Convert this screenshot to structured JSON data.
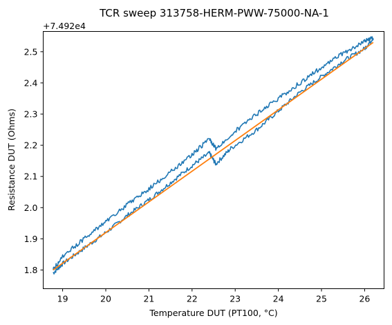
{
  "chart_data": {
    "type": "line",
    "title": "TCR sweep 313758-HERM-PWW-75000-NA-1",
    "xlabel": "Temperature DUT (PT100, °C)",
    "ylabel": "Resistance DUT (Ohms)",
    "y_offset_label": "+7.492e4",
    "xlim": [
      18.55,
      26.45
    ],
    "ylim": [
      1.74,
      2.565
    ],
    "x_ticks": [
      19,
      20,
      21,
      22,
      23,
      24,
      25,
      26
    ],
    "y_ticks": [
      1.8,
      1.9,
      2.0,
      2.1,
      2.2,
      2.3,
      2.4,
      2.5
    ],
    "y_tick_labels": [
      "1.8",
      "1.9",
      "2.0",
      "2.1",
      "2.2",
      "2.3",
      "2.4",
      "2.5"
    ],
    "grid": false,
    "series": [
      {
        "color": "#1f77b4",
        "style": "noisy measurement",
        "x": [
          18.78,
          19.0,
          19.5,
          20.0,
          20.5,
          21.0,
          21.5,
          22.0,
          22.4,
          22.55,
          22.9,
          23.5,
          24.0,
          24.5,
          25.0,
          25.5,
          26.0,
          26.2,
          26.0,
          25.5,
          25.0,
          24.5,
          24.0,
          23.5,
          23.0,
          22.55,
          22.4,
          22.0,
          21.5,
          21.0,
          20.5,
          20.0,
          19.5,
          19.0,
          18.78
        ],
        "y": [
          1.79,
          1.82,
          1.87,
          1.92,
          1.975,
          2.025,
          2.08,
          2.135,
          2.175,
          2.14,
          2.19,
          2.25,
          2.31,
          2.37,
          2.42,
          2.47,
          2.51,
          2.545,
          2.535,
          2.495,
          2.45,
          2.4,
          2.35,
          2.3,
          2.245,
          2.19,
          2.22,
          2.17,
          2.115,
          2.06,
          2.01,
          1.955,
          1.9,
          1.845,
          1.8
        ]
      },
      {
        "color": "#ff7f0e",
        "style": "linear fit",
        "x": [
          18.78,
          26.2
        ],
        "y": [
          1.8,
          2.53
        ]
      }
    ]
  }
}
